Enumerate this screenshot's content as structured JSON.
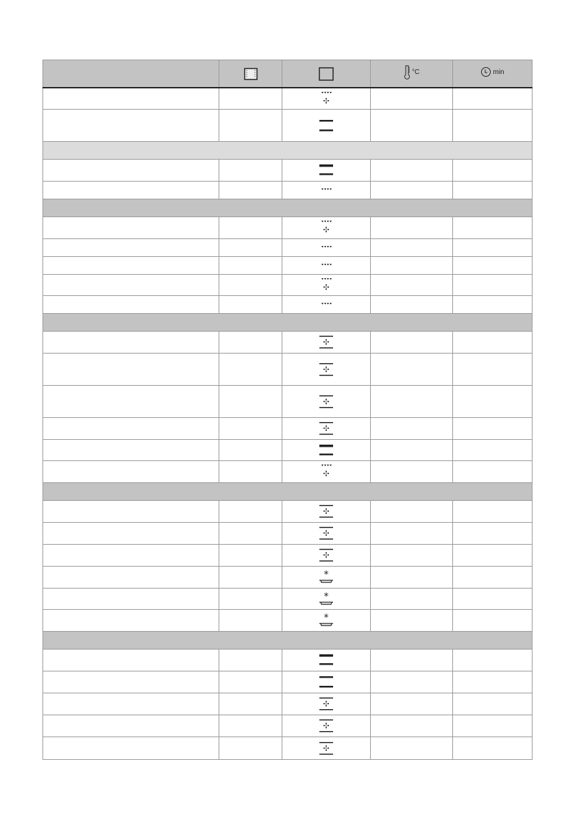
{
  "header": {
    "temp_unit": "°C",
    "time_unit": "min",
    "icons": [
      "shelf-level-icon",
      "oven-function-icon",
      "thermometer-icon",
      "clock-icon"
    ]
  },
  "rows": [
    {
      "type": "row",
      "h": 31,
      "icon": "grill-fan"
    },
    {
      "type": "row",
      "h": 47,
      "icon": "top-bottom"
    },
    {
      "type": "section",
      "h": 26,
      "light": true
    },
    {
      "type": "row",
      "h": 32,
      "icon": "top-bottom-bold"
    },
    {
      "type": "row",
      "h": 26,
      "icon": "grill"
    },
    {
      "type": "section",
      "h": 26
    },
    {
      "type": "row",
      "h": 32,
      "icon": "grill-fan"
    },
    {
      "type": "row",
      "h": 26,
      "icon": "grill"
    },
    {
      "type": "row",
      "h": 26,
      "icon": "grill"
    },
    {
      "type": "row",
      "h": 31,
      "icon": "grill-fan"
    },
    {
      "type": "row",
      "h": 26,
      "icon": "grill"
    },
    {
      "type": "section",
      "h": 26
    },
    {
      "type": "row",
      "h": 32,
      "icon": "fan-ring"
    },
    {
      "type": "row",
      "h": 47,
      "icon": "fan-ring"
    },
    {
      "type": "row",
      "h": 47,
      "icon": "fan-ring"
    },
    {
      "type": "row",
      "h": 32,
      "icon": "fan-ring"
    },
    {
      "type": "row",
      "h": 31,
      "icon": "top-bottom-bold"
    },
    {
      "type": "row",
      "h": 32,
      "icon": "grill-fan"
    },
    {
      "type": "section",
      "h": 26
    },
    {
      "type": "row",
      "h": 32,
      "icon": "fan-ring"
    },
    {
      "type": "row",
      "h": 32,
      "icon": "fan-ring"
    },
    {
      "type": "row",
      "h": 32,
      "icon": "fan-ring"
    },
    {
      "type": "row",
      "h": 32,
      "icon": "defrost"
    },
    {
      "type": "row",
      "h": 31,
      "icon": "defrost"
    },
    {
      "type": "row",
      "h": 32,
      "icon": "defrost"
    },
    {
      "type": "section",
      "h": 26
    },
    {
      "type": "row",
      "h": 32,
      "icon": "top-bottom-bold"
    },
    {
      "type": "row",
      "h": 32,
      "icon": "top-bottom"
    },
    {
      "type": "row",
      "h": 32,
      "icon": "fan-ring"
    },
    {
      "type": "row",
      "h": 32,
      "icon": "fan-ring"
    },
    {
      "type": "row",
      "h": 33,
      "icon": "fan-ring"
    }
  ]
}
